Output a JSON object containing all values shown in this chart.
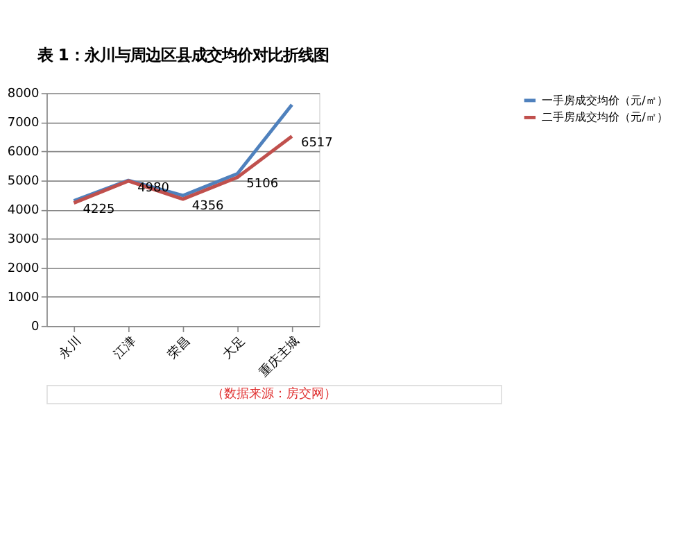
{
  "chart_data": {
    "type": "line",
    "title": "表 1：永川与周边区县成交均价对比折线图",
    "categories": [
      "永川",
      "江津",
      "荣昌",
      "大足",
      "重庆主城"
    ],
    "series": [
      {
        "name": "一手房成交均价（元/㎡）",
        "color": "#4f81bd",
        "values": [
          4300,
          5000,
          4480,
          5230,
          7600
        ]
      },
      {
        "name": "二手房成交均价（元/㎡）",
        "color": "#c0504d",
        "values": [
          4225,
          4980,
          4356,
          5106,
          6517
        ],
        "value_labels": [
          "4225",
          "4980",
          "4356",
          "5106",
          "6517"
        ]
      }
    ],
    "ylim": [
      0,
      8000
    ],
    "yticks": [
      0,
      1000,
      2000,
      3000,
      4000,
      5000,
      6000,
      7000,
      8000
    ],
    "grid": "y",
    "legend": "right",
    "marker": "none",
    "line_style": "solid",
    "annotations": [
      "（数据来源：房交网）"
    ]
  }
}
